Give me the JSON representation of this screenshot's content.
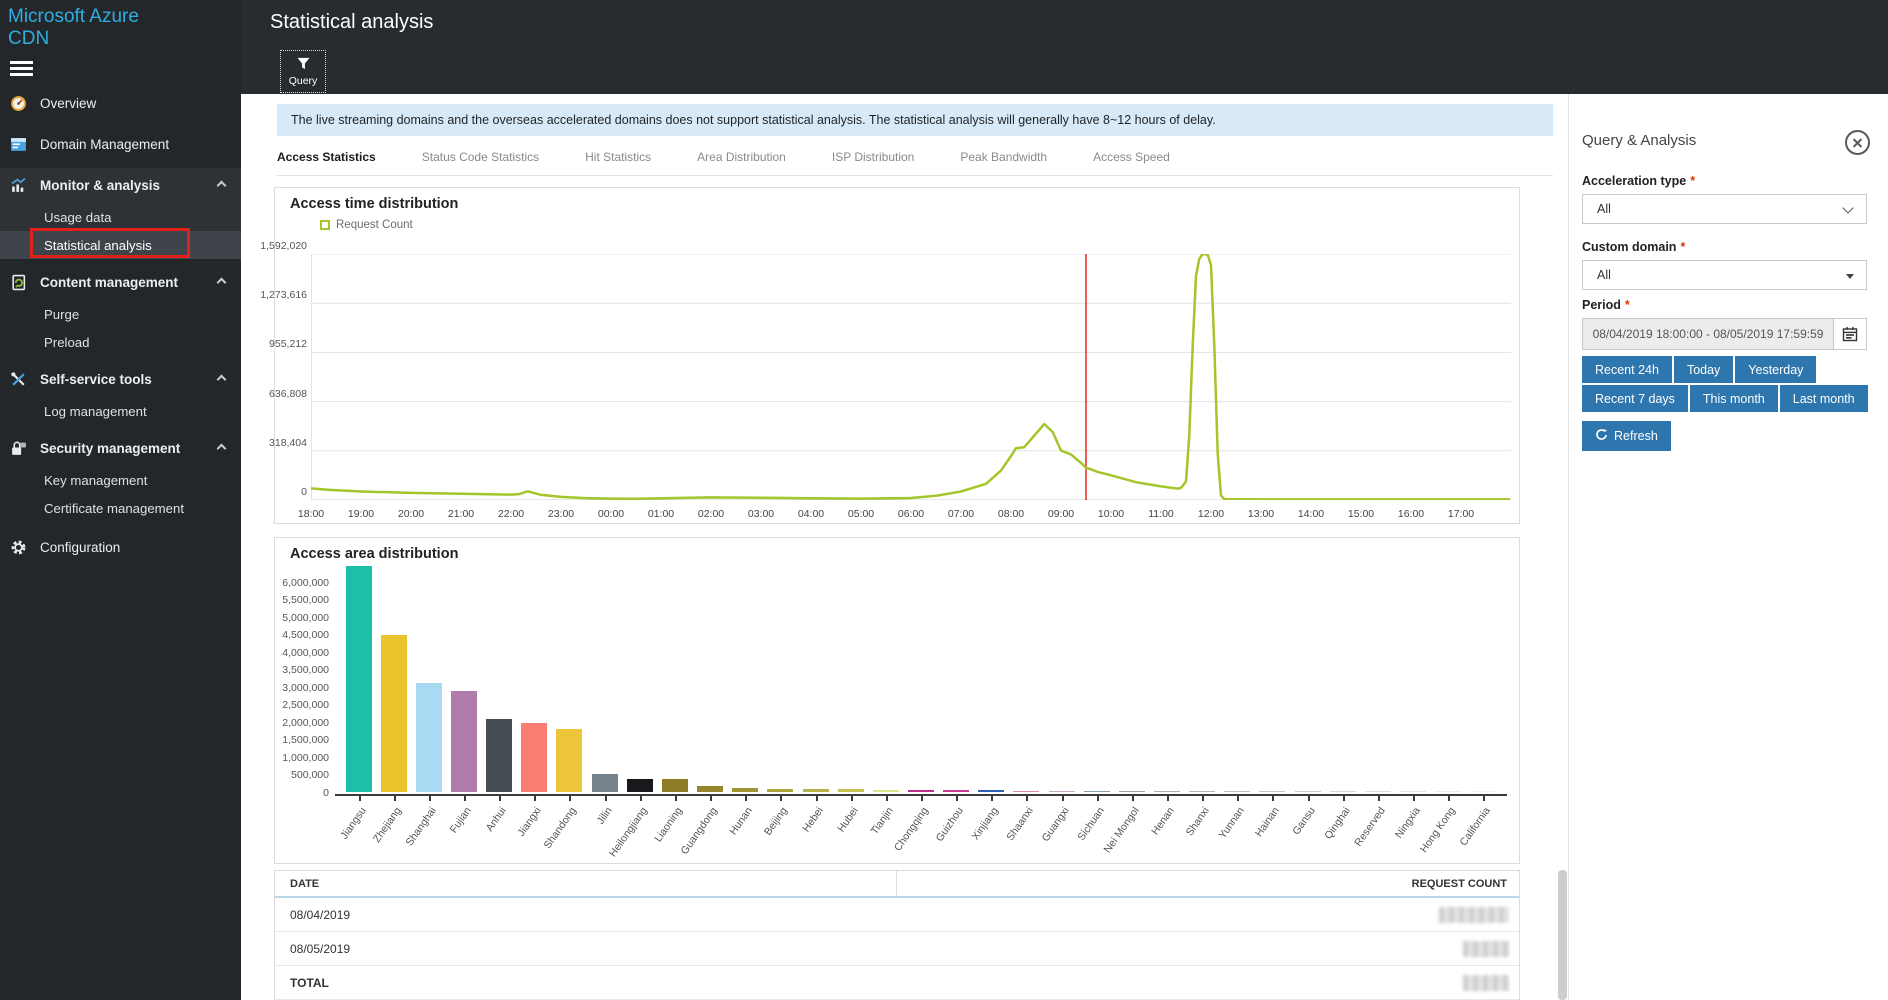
{
  "app": {
    "product": "Microsoft Azure",
    "product_sub": "CDN"
  },
  "header": {
    "title": "Statistical analysis"
  },
  "toolbar": {
    "query_label": "Query"
  },
  "banner": {
    "text": "The live streaming domains and the overseas accelerated domains does not support statistical analysis. The statistical analysis will generally have 8~12 hours of delay."
  },
  "sidebar": {
    "items": [
      {
        "label": "Overview",
        "icon": "gauge-icon",
        "type": "item"
      },
      {
        "label": "Domain Management",
        "icon": "window-icon",
        "type": "item"
      },
      {
        "label": "Monitor & analysis",
        "icon": "chart-icon",
        "type": "group",
        "expanded": true,
        "group_highlight": true
      },
      {
        "label": "Usage data",
        "type": "subitem",
        "group_highlight": true
      },
      {
        "label": "Statistical analysis",
        "type": "subitem",
        "active": true,
        "highlight_box": true,
        "group_highlight": true
      },
      {
        "label": "Content management",
        "icon": "content-sync-icon",
        "type": "group",
        "expanded": true
      },
      {
        "label": "Purge",
        "type": "subitem"
      },
      {
        "label": "Preload",
        "type": "subitem"
      },
      {
        "label": "Self-service tools",
        "icon": "tools-icon",
        "type": "group",
        "expanded": true
      },
      {
        "label": "Log management",
        "type": "subitem"
      },
      {
        "label": "Security management",
        "icon": "lock-icon",
        "type": "group",
        "expanded": true
      },
      {
        "label": "Key management",
        "type": "subitem"
      },
      {
        "label": "Certificate management",
        "type": "subitem"
      },
      {
        "label": "Configuration",
        "icon": "gear-icon",
        "type": "item"
      }
    ]
  },
  "tabs": [
    {
      "label": "Access Statistics",
      "active": true
    },
    {
      "label": "Status Code Statistics",
      "active": false
    },
    {
      "label": "Hit Statistics",
      "active": false
    },
    {
      "label": "Area Distribution",
      "active": false
    },
    {
      "label": "ISP Distribution",
      "active": false
    },
    {
      "label": "Peak Bandwidth",
      "active": false
    },
    {
      "label": "Access Speed",
      "active": false
    }
  ],
  "chart_data": [
    {
      "type": "line",
      "title": "Access time distribution",
      "ylim": [
        0,
        1592020
      ],
      "yticks": [
        "0",
        "318,404",
        "636,808",
        "955,212",
        "1,273,616",
        "1,592,020"
      ],
      "xticks": [
        "18:00",
        "19:00",
        "20:00",
        "21:00",
        "22:00",
        "23:00",
        "00:00",
        "01:00",
        "02:00",
        "03:00",
        "04:00",
        "05:00",
        "06:00",
        "07:00",
        "08:00",
        "09:00",
        "10:00",
        "11:00",
        "12:00",
        "13:00",
        "14:00",
        "15:00",
        "16:00",
        "17:00"
      ],
      "marker_line": {
        "time": "09:30",
        "color": "#e02b20"
      },
      "series": [
        {
          "name": "Request Count",
          "color": "#a3c62b",
          "points": [
            [
              "18:00",
              75000
            ],
            [
              "18:20",
              66000
            ],
            [
              "19:00",
              55000
            ],
            [
              "20:00",
              46000
            ],
            [
              "21:00",
              40000
            ],
            [
              "22:00",
              35000
            ],
            [
              "22:10",
              38000
            ],
            [
              "22:20",
              56000
            ],
            [
              "22:35",
              34000
            ],
            [
              "23:00",
              20000
            ],
            [
              "23:30",
              12000
            ],
            [
              "00:00",
              9000
            ],
            [
              "00:30",
              8000
            ],
            [
              "01:00",
              11000
            ],
            [
              "02:00",
              17000
            ],
            [
              "03:00",
              15000
            ],
            [
              "04:00",
              11000
            ],
            [
              "05:00",
              9000
            ],
            [
              "06:00",
              13000
            ],
            [
              "06:30",
              27000
            ],
            [
              "07:00",
              55000
            ],
            [
              "07:30",
              105000
            ],
            [
              "07:48",
              190000
            ],
            [
              "08:00",
              285000
            ],
            [
              "08:06",
              335000
            ],
            [
              "08:16",
              342000
            ],
            [
              "08:30",
              430000
            ],
            [
              "08:40",
              492000
            ],
            [
              "08:50",
              440000
            ],
            [
              "09:00",
              320000
            ],
            [
              "09:12",
              295000
            ],
            [
              "09:24",
              240000
            ],
            [
              "09:30",
              210000
            ],
            [
              "09:45",
              180000
            ],
            [
              "10:00",
              160000
            ],
            [
              "10:30",
              115000
            ],
            [
              "11:00",
              88000
            ],
            [
              "11:20",
              74000
            ],
            [
              "11:24",
              78000
            ],
            [
              "11:30",
              120000
            ],
            [
              "11:34",
              420000
            ],
            [
              "11:38",
              1000000
            ],
            [
              "11:42",
              1450000
            ],
            [
              "11:46",
              1560000
            ],
            [
              "11:50",
              1592020
            ],
            [
              "11:56",
              1588000
            ],
            [
              "12:00",
              1520000
            ],
            [
              "12:04",
              1000000
            ],
            [
              "12:08",
              300000
            ],
            [
              "12:12",
              30000
            ],
            [
              "12:16",
              6000
            ],
            [
              "12:30",
              5000
            ],
            [
              "13:00",
              4000
            ],
            [
              "14:00",
              4000
            ],
            [
              "15:00",
              4000
            ],
            [
              "16:00",
              4000
            ],
            [
              "17:00",
              4000
            ],
            [
              "17:58",
              4000
            ]
          ]
        }
      ]
    },
    {
      "type": "bar",
      "title": "Access area distribution",
      "ylim": [
        0,
        6500000
      ],
      "yticks": [
        "0",
        "500,000",
        "1,000,000",
        "1,500,000",
        "2,000,000",
        "2,500,000",
        "3,000,000",
        "3,500,000",
        "4,000,000",
        "4,500,000",
        "5,000,000",
        "5,500,000",
        "6,000,000"
      ],
      "categories": [
        "Jiangsu",
        "Zhejiang",
        "Shanghai",
        "Fujian",
        "Anhui",
        "Jiangxi",
        "Shandong",
        "Jilin",
        "Heilongjiang",
        "Liaoning",
        "Guangdong",
        "Hunan",
        "Beijing",
        "Hebei",
        "Hubei",
        "Tianjin",
        "Chongqing",
        "Guizhou",
        "Xinjiang",
        "Shaanxi",
        "Guangxi",
        "Sichuan",
        "Nei Mongol",
        "Henan",
        "Shanxi",
        "Yunnan",
        "Hainan",
        "Gansu",
        "Qinghai",
        "Reserved",
        "Ningxia",
        "Hong Kong",
        "California"
      ],
      "values": [
        6430000,
        4480000,
        3110000,
        2870000,
        2080000,
        1970000,
        1800000,
        520000,
        385000,
        370000,
        185000,
        125000,
        95000,
        85000,
        76000,
        48000,
        62000,
        52000,
        58000,
        20000,
        16000,
        14000,
        12000,
        11000,
        10000,
        9000,
        8000,
        7000,
        6000,
        6000,
        5000,
        5000,
        4000
      ],
      "colors": [
        "#1dbfa6",
        "#e9c42d",
        "#a9daf2",
        "#b07cab",
        "#454d52",
        "#fa7d73",
        "#ecc53a",
        "#76828b",
        "#17191c",
        "#8d7b26",
        "#97862c",
        "#a29434",
        "#ada63e",
        "#b8b349",
        "#c3c455",
        "#dbe588",
        "#c02e8c",
        "#cb3a93",
        "#2d62b0",
        "#d98ab0",
        "#c9aac4",
        "#8a9ba8",
        "#9aa5ad",
        "#a8b0b6",
        "#b0b8be",
        "#b8c0c6",
        "#c0c8ce",
        "#c8d0d6",
        "#d0d8de",
        "#d8e0e6",
        "#e0e8ee",
        "#e8f0f6",
        "#eef4f8"
      ]
    }
  ],
  "table": {
    "headers": [
      "DATE",
      "REQUEST COUNT"
    ],
    "rows": [
      {
        "date": "08/04/2019",
        "value_redacted": true,
        "bold": false
      },
      {
        "date": "08/05/2019",
        "value_redacted": true,
        "bold": false
      },
      {
        "date": "TOTAL",
        "value_redacted": true,
        "bold": true
      }
    ]
  },
  "query_panel": {
    "title": "Query & Analysis",
    "required_marker": "*",
    "fields": [
      {
        "label": "Acceleration type",
        "value": "All",
        "control": "select"
      },
      {
        "label": "Custom domain",
        "value": "All",
        "control": "select"
      },
      {
        "label": "Period",
        "value": "08/04/2019 18:00:00 - 08/05/2019 17:59:59",
        "control": "daterange"
      }
    ],
    "quick_ranges": [
      [
        "Recent 24h",
        "Today",
        "Yesterday"
      ],
      [
        "Recent 7 days",
        "This month",
        "Last month"
      ]
    ],
    "refresh_label": "Refresh",
    "accent_color": "#2d76ae"
  }
}
